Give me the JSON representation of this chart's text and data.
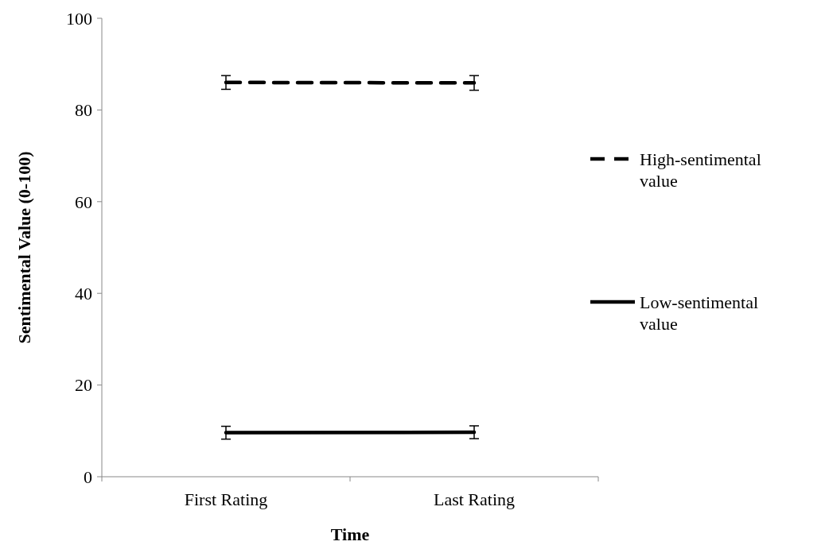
{
  "chart_data": {
    "type": "line",
    "xlabel": "Time",
    "ylabel": "Sentimental Value (0-100)",
    "categories": [
      "First Rating",
      "Last Rating"
    ],
    "series": [
      {
        "name": "High-sentimental value",
        "color": "#000000",
        "values": [
          86,
          85.9
        ],
        "errors": [
          1.5,
          1.6
        ],
        "line_style": "dashed"
      },
      {
        "name": "Low-sentimental value",
        "color": "#000000",
        "values": [
          9.6,
          9.7
        ],
        "errors": [
          1.4,
          1.4
        ],
        "line_style": "solid"
      }
    ],
    "ylim": [
      0,
      100
    ],
    "yticks": [
      0,
      20,
      40,
      60,
      80,
      100
    ],
    "grid": false,
    "legend": "right",
    "marker": "none"
  }
}
